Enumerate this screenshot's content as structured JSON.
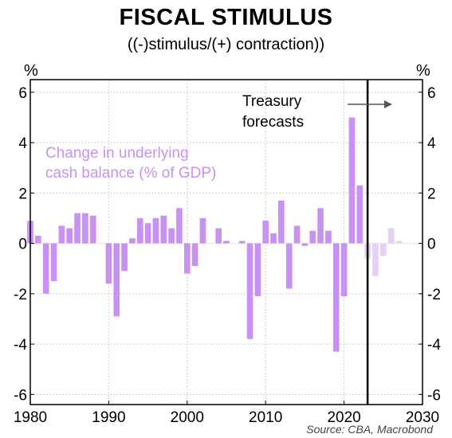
{
  "header": {
    "title": "FISCAL STIMULUS",
    "subtitle": "((-)stimulus/(+) contraction))",
    "unit_left": "%",
    "unit_right": "%"
  },
  "footer": {
    "source": "Source: CBA, Macrobond"
  },
  "colors": {
    "actual": "#c792f2",
    "forecast": "#e6d0f8",
    "text_purple": "#c792f2",
    "grid": "#cfcfcf"
  },
  "chart_data": {
    "type": "bar",
    "xlim": [
      1980,
      2030
    ],
    "ylim": [
      -6.4,
      6.5
    ],
    "x_ticks": [
      1980,
      1990,
      2000,
      2010,
      2020,
      2030
    ],
    "y_ticks": [
      -6,
      -4,
      -2,
      0,
      2,
      4,
      6
    ],
    "grid": true,
    "series_label": "Change in underlying cash balance (% of GDP)",
    "series_label_lines": [
      "Change in underlying",
      "cash balance (% of GDP)"
    ],
    "forecast_annotation_lines": [
      "Treasury",
      "forecasts"
    ],
    "forecast_start": 2023,
    "series": [
      {
        "name": "Change in underlying cash balance (% of GDP)",
        "x": [
          1980,
          1981,
          1982,
          1983,
          1984,
          1985,
          1986,
          1987,
          1988,
          1989,
          1990,
          1991,
          1992,
          1993,
          1994,
          1995,
          1996,
          1997,
          1998,
          1999,
          2000,
          2001,
          2002,
          2003,
          2004,
          2005,
          2006,
          2007,
          2008,
          2009,
          2010,
          2011,
          2012,
          2013,
          2014,
          2015,
          2016,
          2017,
          2018,
          2019,
          2020,
          2021,
          2022
        ],
        "values": [
          0.9,
          0.3,
          -2.0,
          -1.5,
          0.7,
          0.6,
          1.2,
          1.2,
          1.1,
          0,
          -1.6,
          -2.9,
          -1.1,
          0.2,
          1.0,
          0.8,
          1.0,
          1.1,
          0.6,
          1.4,
          -1.2,
          -0.9,
          1.0,
          0,
          0.6,
          0.1,
          0,
          0.1,
          -3.8,
          -2.1,
          0.9,
          0.4,
          1.7,
          -1.8,
          0.7,
          -0.1,
          0.5,
          1.4,
          0.5,
          -4.3,
          -2.1,
          5.0,
          2.3
        ]
      },
      {
        "name": "Treasury forecasts",
        "x": [
          2023,
          2024,
          2025,
          2026,
          2027
        ],
        "values": [
          -0.6,
          -1.3,
          -0.5,
          0.6,
          0.1
        ]
      }
    ]
  }
}
